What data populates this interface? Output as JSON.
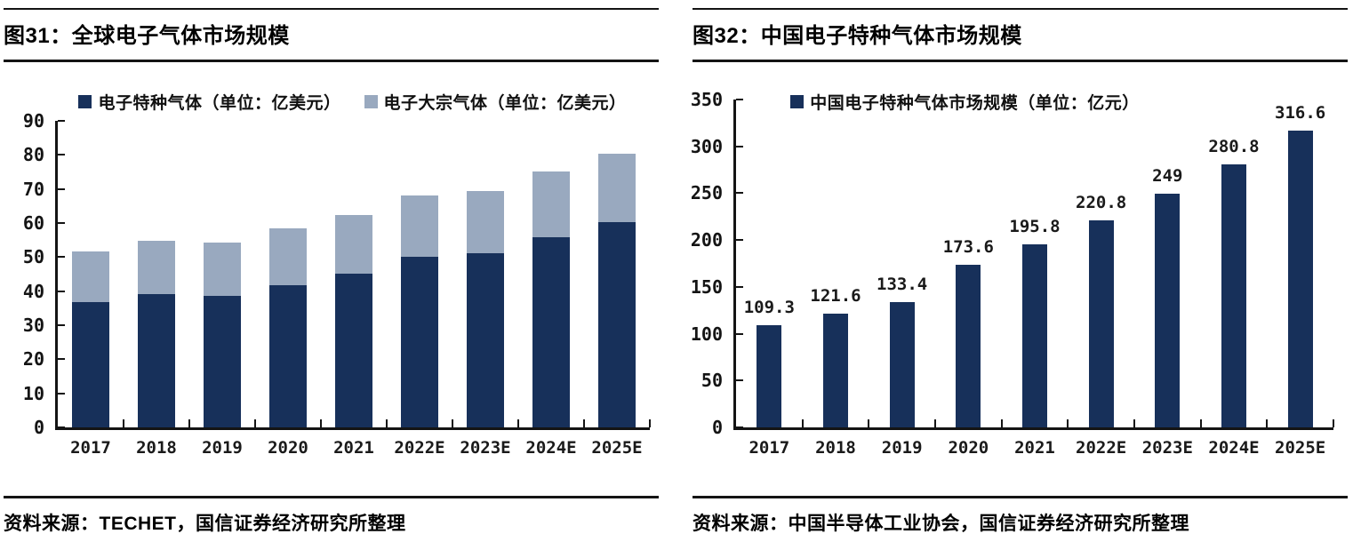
{
  "figures": [
    {
      "title": "图31：全球电子气体市场规模",
      "source": "资料来源：TECHET，国信证券经济研究所整理"
    },
    {
      "title": "图32：中国电子特种气体市场规模",
      "source": "资料来源：中国半导体工业协会，国信证券经济研究所整理"
    }
  ],
  "colors": {
    "navy": "#17305a",
    "gray_blue": "#99a9bf",
    "axis": "#141414"
  },
  "chart_data": [
    {
      "type": "bar",
      "stacked": true,
      "title": "图31：全球电子气体市场规模",
      "categories": [
        "2017",
        "2018",
        "2019",
        "2020",
        "2021",
        "2022E",
        "2023E",
        "2024E",
        "2025E"
      ],
      "series": [
        {
          "name": "电子特种气体（单位：亿美元）",
          "color": "#17305a",
          "values": [
            36.9,
            39.1,
            38.7,
            41.7,
            45.2,
            50.0,
            51.2,
            55.7,
            60.2
          ]
        },
        {
          "name": "电子大宗气体（单位：亿美元）",
          "color": "#99a9bf",
          "values": [
            14.7,
            15.6,
            15.5,
            16.8,
            17.2,
            18.0,
            18.3,
            19.4,
            20.2
          ]
        }
      ],
      "xlabel": "",
      "ylabel": "",
      "ylim": [
        0,
        90
      ],
      "ytick_step": 10,
      "grid": false,
      "legend_position": "top-center",
      "show_data_labels": false
    },
    {
      "type": "bar",
      "stacked": false,
      "title": "图32：中国电子特种气体市场规模",
      "categories": [
        "2017",
        "2018",
        "2019",
        "2020",
        "2021",
        "2022E",
        "2023E",
        "2024E",
        "2025E"
      ],
      "series": [
        {
          "name": "中国电子特种气体市场规模（单位：亿元）",
          "color": "#17305a",
          "values": [
            109.3,
            121.6,
            133.4,
            173.6,
            195.8,
            220.8,
            249,
            280.8,
            316.6
          ],
          "labels": [
            "109.3",
            "121.6",
            "133.4",
            "173.6",
            "195.8",
            "220.8",
            "249",
            "280.8",
            "316.6"
          ]
        }
      ],
      "xlabel": "",
      "ylabel": "",
      "ylim": [
        0,
        350
      ],
      "ytick_step": 50,
      "grid": false,
      "legend_position": "top-center",
      "show_data_labels": true
    }
  ]
}
